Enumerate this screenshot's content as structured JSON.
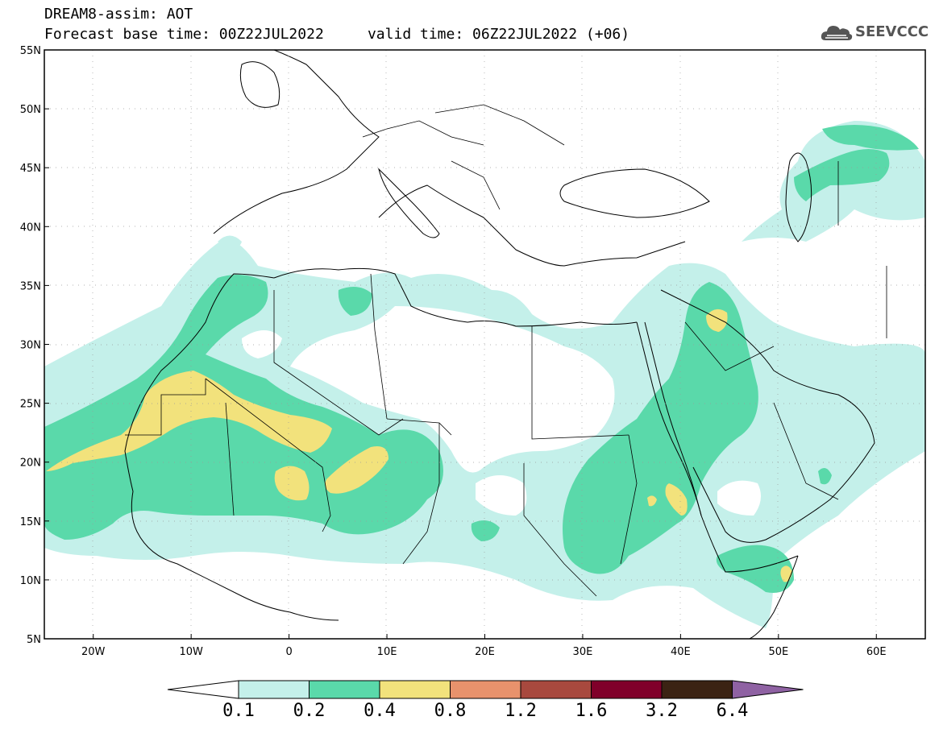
{
  "header": {
    "title_line1": "DREAM8-assim: AOT",
    "title_line2": "Forecast base time: 00Z22JUL2022     valid time: 06Z22JUL2022 (+06)"
  },
  "logo": {
    "icon": "cloud-icon",
    "text": "SEEVCCC"
  },
  "map": {
    "projection": "cylindrical",
    "lon_range": [
      -25,
      65
    ],
    "lat_range": [
      5,
      55
    ],
    "lat_ticks": [
      {
        "value": 55,
        "label": "55N"
      },
      {
        "value": 50,
        "label": "50N"
      },
      {
        "value": 45,
        "label": "45N"
      },
      {
        "value": 40,
        "label": "40N"
      },
      {
        "value": 35,
        "label": "35N"
      },
      {
        "value": 30,
        "label": "30N"
      },
      {
        "value": 25,
        "label": "25N"
      },
      {
        "value": 20,
        "label": "20N"
      },
      {
        "value": 15,
        "label": "15N"
      },
      {
        "value": 10,
        "label": "10N"
      },
      {
        "value": 5,
        "label": "5N"
      }
    ],
    "lon_ticks": [
      {
        "value": -20,
        "label": "20W"
      },
      {
        "value": -10,
        "label": "10W"
      },
      {
        "value": 0,
        "label": "0"
      },
      {
        "value": 10,
        "label": "10E"
      },
      {
        "value": 20,
        "label": "20E"
      },
      {
        "value": 30,
        "label": "30E"
      },
      {
        "value": 40,
        "label": "40E"
      },
      {
        "value": 50,
        "label": "50E"
      },
      {
        "value": 60,
        "label": "60E"
      }
    ],
    "grid": "dotted"
  },
  "colorbar": {
    "left_arrow_color": "#ffffff",
    "right_arrow_color": "#8f62a3",
    "bins": [
      {
        "color": "#c4f0ea"
      },
      {
        "color": "#5ad9aa"
      },
      {
        "color": "#f2e27c"
      },
      {
        "color": "#e8926c"
      },
      {
        "color": "#a8493e"
      },
      {
        "color": "#80002a"
      },
      {
        "color": "#3b2313"
      }
    ],
    "labels": [
      "0.1",
      "0.2",
      "0.4",
      "0.8",
      "1.2",
      "1.6",
      "3.2",
      "6.4"
    ]
  }
}
